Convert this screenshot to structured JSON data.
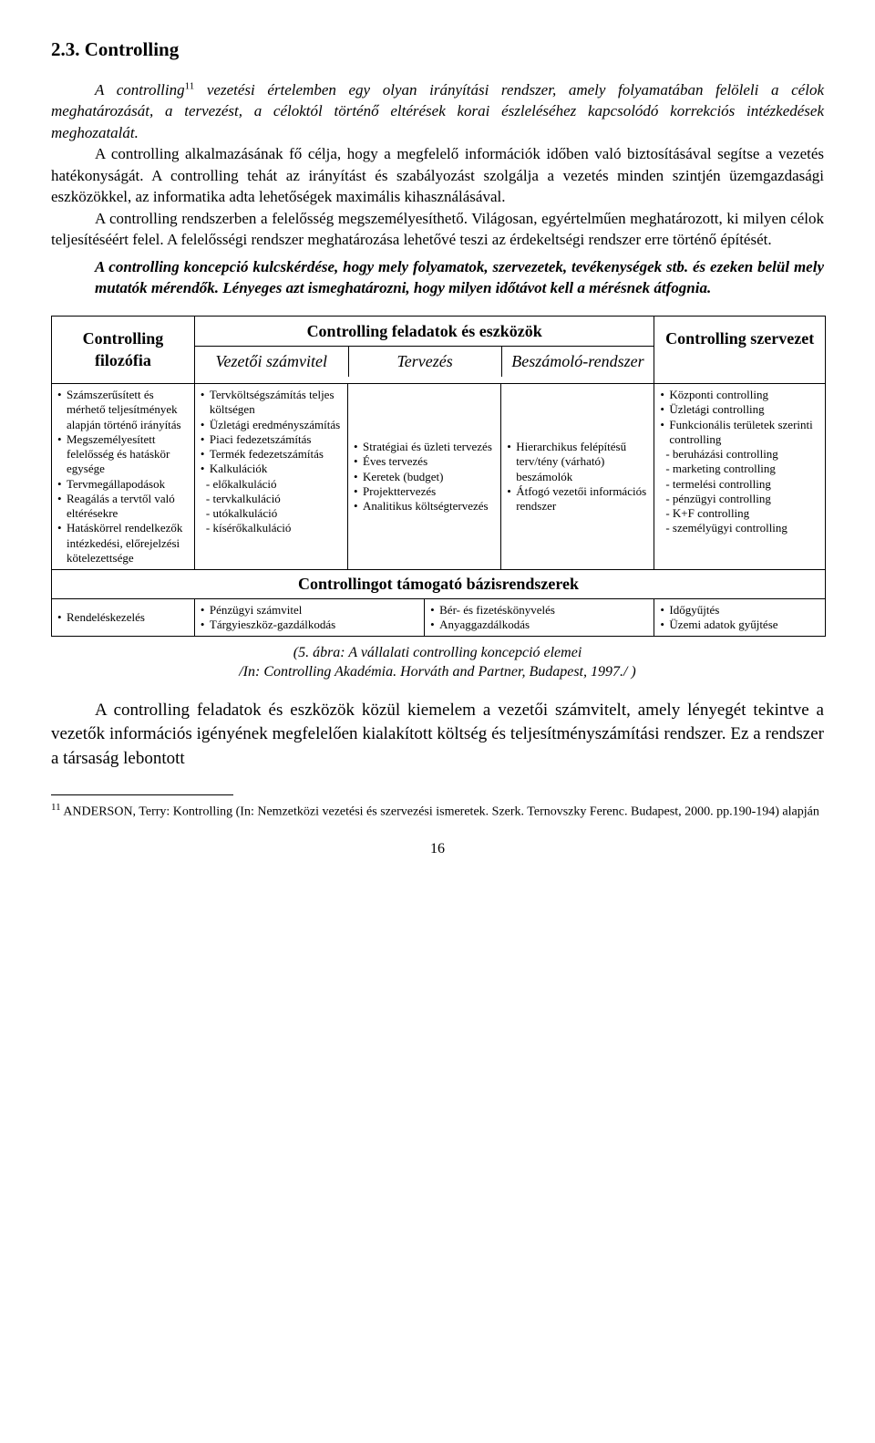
{
  "section": {
    "number": "2.3.",
    "title": "Controlling",
    "p1_prefix": "A controlling",
    "p1_sup": "11",
    "p1_rest": " vezetési értelemben egy olyan irányítási rendszer, amely folyamatában felöleli a célok meghatározását, a tervezést, a céloktól történő eltérések korai észleléséhez kapcsolódó korrekciós intézkedések meghozatalát.",
    "p2": "A controlling alkalmazásának fő célja, hogy a megfelelő információk időben való biztosításával segítse a vezetés hatékonyságát. A controlling tehát az irányítást és szabályozást szolgálja a vezetés minden szintjén üzemgazdasági eszközökkel, az informatika adta lehetőségek maximális kihasználásával.",
    "p3": "A controlling rendszerben a felelősség megszemélyesíthető. Világosan, egyértelműen meghatározott, ki milyen célok teljesítéséért felel. A felelősségi rendszer meghatározása lehetővé teszi az érdekeltségi rendszer erre történő építését.",
    "emph": "A controlling koncepció kulcskérdése, hogy mely folyamatok, szervezetek, tevékenységek stb. és ezeken belül mely mutatók mérendők. Lényeges azt ismeghatározni, hogy milyen időtávot kell a mérésnek átfognia."
  },
  "table": {
    "headers": {
      "filozofia": "Controlling filozófia",
      "feladatok": "Controlling feladatok és eszközök",
      "szamvitel": "Vezetői számvitel",
      "tervezes": "Tervezés",
      "beszamolo": "Beszámoló-rendszer",
      "szervezet": "Controlling szervezet",
      "bazis": "Controllingot támogató bázisrendszerek"
    },
    "filozofia_items": [
      "Számszerűsített és mérhető teljesítmények alapján történő irányítás",
      "Megszemélyesített felelősség és hatáskör egysége",
      "Tervmegállapodások",
      "Reagálás a tervtől való eltérésekre",
      "Hatáskörrel rendelkezők intézkedési, előrejelzési kötelezettsége"
    ],
    "szamvitel_items": [
      "Tervköltségszámítás teljes költségen",
      "Üzletági eredményszámítás",
      "Piaci fedezetszámítás",
      "Termék fedezetszámítás",
      "Kalkulációk"
    ],
    "szamvitel_sub": [
      "- előkalkuláció",
      "- tervkalkuláció",
      "- utókalkuláció",
      "- kísérőkalkuláció"
    ],
    "tervezes_items": [
      "Stratégiai és üzleti tervezés",
      "Éves tervezés",
      "Keretek (budget)",
      "Projekttervezés",
      "Analitikus költségtervezés"
    ],
    "beszamolo_items": [
      "Hierarchikus felépítésű terv/tény (várható) beszámolók",
      "Átfogó vezetői információs rendszer"
    ],
    "szervezet_items": [
      "Központi controlling",
      "Üzletági controlling",
      "Funkcionális területek szerinti controlling"
    ],
    "szervezet_sub": [
      "- beruházási controlling",
      "- marketing controlling",
      "- termelési controlling",
      "- pénzügyi controlling",
      "- K+F controlling",
      "- személyügyi controlling"
    ],
    "bazis": {
      "c1": [
        "Rendeléskezelés"
      ],
      "c2": [
        "Pénzügyi számvitel",
        "Tárgyieszköz-gazdálkodás"
      ],
      "c3": [
        "Bér- és fizetéskönyvelés",
        "Anyaggazdálkodás"
      ],
      "c4": [
        "Időgyűjtés",
        "Üzemi adatok gyűjtése"
      ]
    }
  },
  "caption": {
    "line1": "(5. ábra: A vállalati controlling koncepció elemei",
    "line2": "/In: Controlling Akadémia. Horváth and Partner, Budapest, 1997./ )"
  },
  "closing": "A controlling feladatok és eszközök közül kiemelem a vezetői számvitelt, amely lényegét tekintve a vezetők információs igényének megfelelően kialakított költség és teljesítményszámítási rendszer. Ez a rendszer a társaság lebontott",
  "footnote": {
    "sup": "11",
    "text": " ANDERSON, Terry: Kontrolling (In: Nemzetközi vezetési és szervezési ismeretek. Szerk. Ternovszky Ferenc. Budapest, 2000. pp.190-194) alapján"
  },
  "page": "16"
}
